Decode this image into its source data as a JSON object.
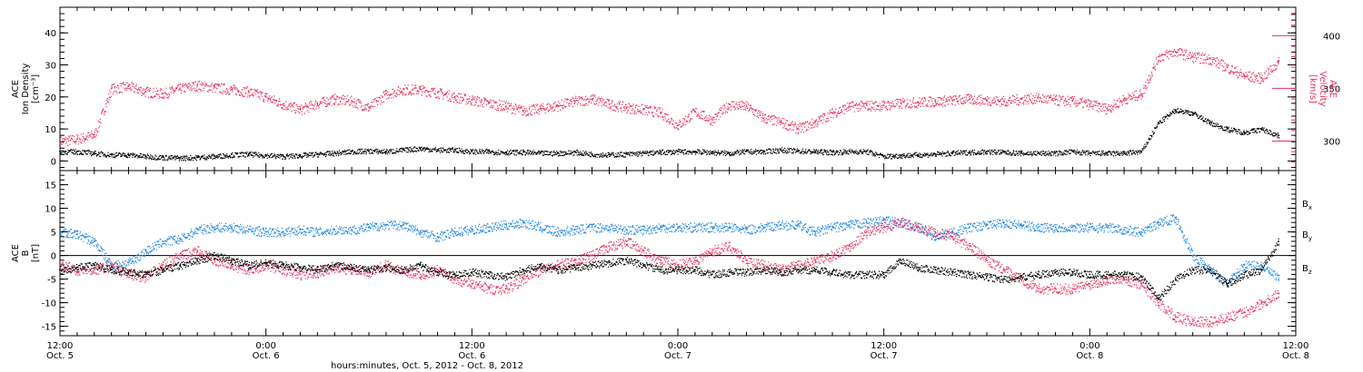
{
  "colors": {
    "black": "#000000",
    "pink": "#e8305f",
    "blue": "#1f86e3"
  },
  "x_axis": {
    "label": "hours:minutes, Oct.  5, 2012 - Oct.  8, 2012",
    "range_hours": [
      0,
      72
    ],
    "major_ticks": [
      {
        "h": 0,
        "time": "12:00",
        "date": "Oct. 5"
      },
      {
        "h": 12,
        "time": "0:00",
        "date": "Oct. 6"
      },
      {
        "h": 24,
        "time": "12:00",
        "date": "Oct. 6"
      },
      {
        "h": 36,
        "time": "0:00",
        "date": "Oct. 7"
      },
      {
        "h": 48,
        "time": "12:00",
        "date": "Oct. 7"
      },
      {
        "h": 60,
        "time": "0:00",
        "date": "Oct. 8"
      },
      {
        "h": 72,
        "time": "12:00",
        "date": "Oct. 8"
      }
    ]
  },
  "chart_data": [
    {
      "type": "scatter",
      "panel": "plasma",
      "ylabel_lines": [
        "ACE",
        "Ion Density",
        "[cm⁻³]"
      ],
      "ylim": [
        -3,
        48
      ],
      "yticks": [
        0,
        10,
        20,
        30,
        40
      ],
      "right_axis": {
        "ylabel_lines": [
          "ACE",
          "Velocity",
          "[km/s]"
        ],
        "ylim": [
          272,
          427
        ],
        "yticks": [
          300,
          350,
          400
        ]
      },
      "series": [
        {
          "axis": "left",
          "color": "black",
          "x": [
            0,
            1,
            2,
            3,
            4,
            5,
            6,
            7,
            8,
            9,
            10,
            11,
            12,
            13,
            14,
            15,
            16,
            17,
            18,
            19,
            20,
            21,
            22,
            23,
            24,
            25,
            26,
            27,
            28,
            29,
            30,
            31,
            32,
            33,
            34,
            35,
            36,
            37,
            38,
            39,
            40,
            41,
            42,
            43,
            44,
            45,
            46,
            47,
            48,
            49,
            50,
            51,
            52,
            53,
            54,
            55,
            56,
            57,
            58,
            59,
            60,
            61,
            62,
            63,
            64,
            65,
            66,
            67,
            68,
            69,
            70,
            71
          ],
          "values": [
            3,
            3,
            2.5,
            2,
            2,
            1.5,
            1.2,
            1,
            1.2,
            1.5,
            2,
            2.2,
            1.8,
            1.5,
            1.8,
            2.2,
            2.5,
            3,
            3.2,
            3,
            3.5,
            4,
            3.5,
            3.5,
            3,
            3,
            2.8,
            2.8,
            2.5,
            2.5,
            2.8,
            2.2,
            2,
            2.2,
            2.5,
            2.8,
            3,
            3,
            2.8,
            2.5,
            3,
            3,
            3.5,
            3.2,
            3,
            2.8,
            3,
            3,
            1.5,
            1.8,
            2,
            2.2,
            2.5,
            2.8,
            3,
            2.8,
            2.5,
            2.5,
            2.5,
            3,
            2.5,
            2.5,
            2.5,
            3,
            12,
            16,
            15,
            12,
            10,
            9,
            10,
            8
          ]
        },
        {
          "axis": "right",
          "color": "pink",
          "x": [
            0,
            1,
            2,
            3,
            4,
            5,
            6,
            7,
            8,
            9,
            10,
            11,
            12,
            13,
            14,
            15,
            16,
            17,
            18,
            19,
            20,
            21,
            22,
            23,
            24,
            25,
            26,
            27,
            28,
            29,
            30,
            31,
            32,
            33,
            34,
            35,
            36,
            37,
            38,
            39,
            40,
            41,
            42,
            43,
            44,
            45,
            46,
            47,
            48,
            49,
            50,
            51,
            52,
            53,
            54,
            55,
            56,
            57,
            58,
            59,
            60,
            61,
            62,
            63,
            64,
            65,
            66,
            67,
            68,
            69,
            70,
            71
          ],
          "values": [
            300,
            302,
            306,
            350,
            352,
            347,
            345,
            350,
            353,
            351,
            349,
            347,
            342,
            335,
            330,
            336,
            340,
            338,
            332,
            345,
            349,
            349,
            346,
            342,
            339,
            336,
            333,
            329,
            331,
            334,
            338,
            340,
            335,
            332,
            330,
            327,
            315,
            328,
            320,
            335,
            333,
            322,
            318,
            312,
            318,
            327,
            333,
            334,
            334,
            336,
            337,
            338,
            339,
            340,
            339,
            338,
            340,
            341,
            339,
            338,
            335,
            331,
            340,
            345,
            380,
            385,
            380,
            378,
            370,
            362,
            360,
            375
          ]
        }
      ]
    },
    {
      "type": "scatter",
      "panel": "magnetic",
      "ylabel_lines": [
        "ACE",
        "B",
        "[nT]"
      ],
      "ylim": [
        -17,
        18
      ],
      "yticks": [
        -15,
        -10,
        -5,
        0,
        5,
        10,
        15
      ],
      "zero_line": true,
      "legend_position": "right",
      "series": [
        {
          "name": "B",
          "subscript": "x",
          "color": "black",
          "x": [
            0,
            1,
            2,
            3,
            4,
            5,
            6,
            7,
            8,
            9,
            10,
            11,
            12,
            13,
            14,
            15,
            16,
            17,
            18,
            19,
            20,
            21,
            22,
            23,
            24,
            25,
            26,
            27,
            28,
            29,
            30,
            31,
            32,
            33,
            34,
            35,
            36,
            37,
            38,
            39,
            40,
            41,
            42,
            43,
            44,
            45,
            46,
            47,
            48,
            49,
            50,
            51,
            52,
            53,
            54,
            55,
            56,
            57,
            58,
            59,
            60,
            61,
            62,
            63,
            64,
            65,
            66,
            67,
            68,
            69,
            70,
            71
          ],
          "values": [
            -3,
            -2.5,
            -2,
            -3,
            -3.5,
            -4,
            -3,
            -2,
            -1,
            0,
            -1,
            -2,
            -1.5,
            -2,
            -2.5,
            -3,
            -2,
            -2.5,
            -3,
            -2.5,
            -3,
            -2,
            -3.5,
            -4,
            -3.5,
            -4,
            -4.5,
            -3,
            -2,
            -3,
            -2.5,
            -2,
            -1.5,
            -1,
            -2,
            -3,
            -3,
            -3,
            -4,
            -3.5,
            -3.5,
            -3,
            -3.5,
            -3,
            -3,
            -3.5,
            -4,
            -4,
            -4,
            -1,
            -2.5,
            -3,
            -3.5,
            -4,
            -4.5,
            -5,
            -4.5,
            -4,
            -3.5,
            -3.5,
            -4,
            -4,
            -4,
            -4.5,
            -9,
            -5,
            -3,
            -3,
            -6,
            -4,
            -3,
            3
          ]
        },
        {
          "name": "B",
          "subscript": "y",
          "color": "blue",
          "x": [
            0,
            1,
            2,
            3,
            4,
            5,
            6,
            7,
            8,
            9,
            10,
            11,
            12,
            13,
            14,
            15,
            16,
            17,
            18,
            19,
            20,
            21,
            22,
            23,
            24,
            25,
            26,
            27,
            28,
            29,
            30,
            31,
            32,
            33,
            34,
            35,
            36,
            37,
            38,
            39,
            40,
            41,
            42,
            43,
            44,
            45,
            46,
            47,
            48,
            49,
            50,
            51,
            52,
            53,
            54,
            55,
            56,
            57,
            58,
            59,
            60,
            61,
            62,
            63,
            64,
            65,
            66,
            67,
            68,
            69,
            70,
            71
          ],
          "values": [
            5,
            4.5,
            3,
            -2,
            -1.5,
            1,
            3,
            3.5,
            5.5,
            6,
            6,
            5.5,
            5,
            5,
            5.5,
            5,
            5.5,
            5.5,
            6,
            6.5,
            6.5,
            5,
            4,
            5,
            5.5,
            6,
            6.5,
            7,
            6,
            5,
            5.5,
            6,
            6,
            5.5,
            5.5,
            6,
            6,
            6,
            6,
            6,
            5.5,
            6,
            6.5,
            6.5,
            5,
            6,
            6.5,
            7,
            7.5,
            7,
            6,
            4,
            5,
            6,
            6.5,
            7,
            6.5,
            6,
            6,
            6,
            6,
            6,
            5.5,
            5,
            7,
            8,
            0,
            -3,
            -6,
            -2,
            -2,
            -5
          ]
        },
        {
          "name": "B",
          "subscript": "z",
          "color": "pink",
          "x": [
            0,
            1,
            2,
            3,
            4,
            5,
            6,
            7,
            8,
            9,
            10,
            11,
            12,
            13,
            14,
            15,
            16,
            17,
            18,
            19,
            20,
            21,
            22,
            23,
            24,
            25,
            26,
            27,
            28,
            29,
            30,
            31,
            32,
            33,
            34,
            35,
            36,
            37,
            38,
            39,
            40,
            41,
            42,
            43,
            44,
            45,
            46,
            47,
            48,
            49,
            50,
            51,
            52,
            53,
            54,
            55,
            56,
            57,
            58,
            59,
            60,
            61,
            62,
            63,
            64,
            65,
            66,
            67,
            68,
            69,
            70,
            71
          ],
          "values": [
            -2,
            -3,
            -3,
            -2,
            -4,
            -4.5,
            -2,
            0,
            1,
            -1,
            -2,
            -3,
            -2,
            -3,
            -4,
            -3.5,
            -2.5,
            -3,
            -3.5,
            -2,
            -3.5,
            -4,
            -3,
            -5,
            -6,
            -7,
            -7,
            -5,
            -3,
            -2,
            -1,
            0,
            2,
            3,
            1,
            -1,
            -2,
            -1,
            1,
            2,
            -1,
            -2,
            -3,
            -2,
            -1,
            0,
            2,
            5,
            6,
            7,
            6,
            5,
            4,
            2,
            -1,
            -3,
            -5,
            -7,
            -7,
            -7,
            -6,
            -5,
            -5,
            -6,
            -10,
            -13,
            -14,
            -14,
            -13,
            -12,
            -10,
            -8
          ]
        }
      ]
    }
  ]
}
